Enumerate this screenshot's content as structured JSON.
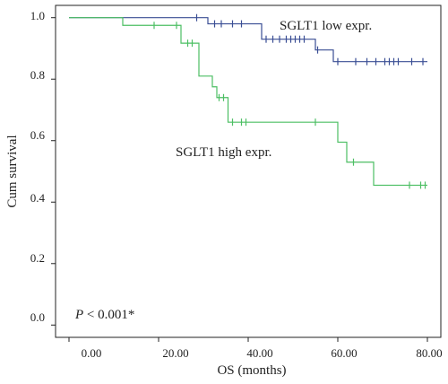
{
  "chart_data": {
    "type": "line",
    "title": "",
    "xlabel": "OS (months)",
    "ylabel": "Cum survival",
    "xlim": [
      -3,
      83
    ],
    "ylim": [
      -0.04,
      1.04
    ],
    "x_ticks": [
      "0.00",
      "20.00",
      "40.00",
      "60.00",
      "80.00"
    ],
    "x_tick_values": [
      0,
      20,
      40,
      60,
      80
    ],
    "y_ticks": [
      "0.0",
      "0.2",
      "0.4",
      "0.6",
      "0.8",
      "1.0"
    ],
    "y_tick_values": [
      0,
      0.2,
      0.4,
      0.6,
      0.8,
      1.0
    ],
    "grid": false,
    "annotation": {
      "p_symbol": "P",
      "p_rest": " < 0.001*"
    },
    "series": [
      {
        "name": "SGLT1 low expr.",
        "color": "#3a4e94",
        "steps": [
          [
            0,
            1.0
          ],
          [
            31,
            0.98
          ],
          [
            43,
            0.93
          ],
          [
            55,
            0.895
          ],
          [
            59,
            0.857
          ],
          [
            80,
            0.857
          ]
        ],
        "censored": [
          [
            28.5,
            1.0
          ],
          [
            32.5,
            0.98
          ],
          [
            34,
            0.98
          ],
          [
            36.5,
            0.98
          ],
          [
            38.5,
            0.98
          ],
          [
            44,
            0.93
          ],
          [
            45.5,
            0.93
          ],
          [
            47,
            0.93
          ],
          [
            48.5,
            0.93
          ],
          [
            49.5,
            0.93
          ],
          [
            50.5,
            0.93
          ],
          [
            51.5,
            0.93
          ],
          [
            52.5,
            0.93
          ],
          [
            55.5,
            0.895
          ],
          [
            60,
            0.857
          ],
          [
            64,
            0.857
          ],
          [
            66.5,
            0.857
          ],
          [
            68.5,
            0.857
          ],
          [
            70.5,
            0.857
          ],
          [
            71.5,
            0.857
          ],
          [
            72.5,
            0.857
          ],
          [
            73.5,
            0.857
          ],
          [
            76.5,
            0.857
          ],
          [
            79,
            0.857
          ]
        ]
      },
      {
        "name": "SGLT1 high expr.",
        "color": "#4cbf63",
        "steps": [
          [
            0,
            1.0
          ],
          [
            12,
            0.975
          ],
          [
            25,
            0.917
          ],
          [
            29,
            0.81
          ],
          [
            32,
            0.775
          ],
          [
            33,
            0.74
          ],
          [
            35.5,
            0.66
          ],
          [
            60,
            0.595
          ],
          [
            62,
            0.53
          ],
          [
            68,
            0.455
          ],
          [
            80,
            0.455
          ]
        ],
        "censored": [
          [
            19,
            0.975
          ],
          [
            24,
            0.975
          ],
          [
            26.5,
            0.917
          ],
          [
            27.5,
            0.917
          ],
          [
            33.5,
            0.74
          ],
          [
            34.5,
            0.74
          ],
          [
            36.5,
            0.66
          ],
          [
            38.5,
            0.66
          ],
          [
            39.5,
            0.66
          ],
          [
            55,
            0.66
          ],
          [
            63.5,
            0.53
          ],
          [
            76,
            0.455
          ],
          [
            78.5,
            0.455
          ],
          [
            79.5,
            0.455
          ]
        ]
      }
    ],
    "labels": [
      "SGLT1 low expr.",
      "SGLT1 high expr."
    ]
  }
}
